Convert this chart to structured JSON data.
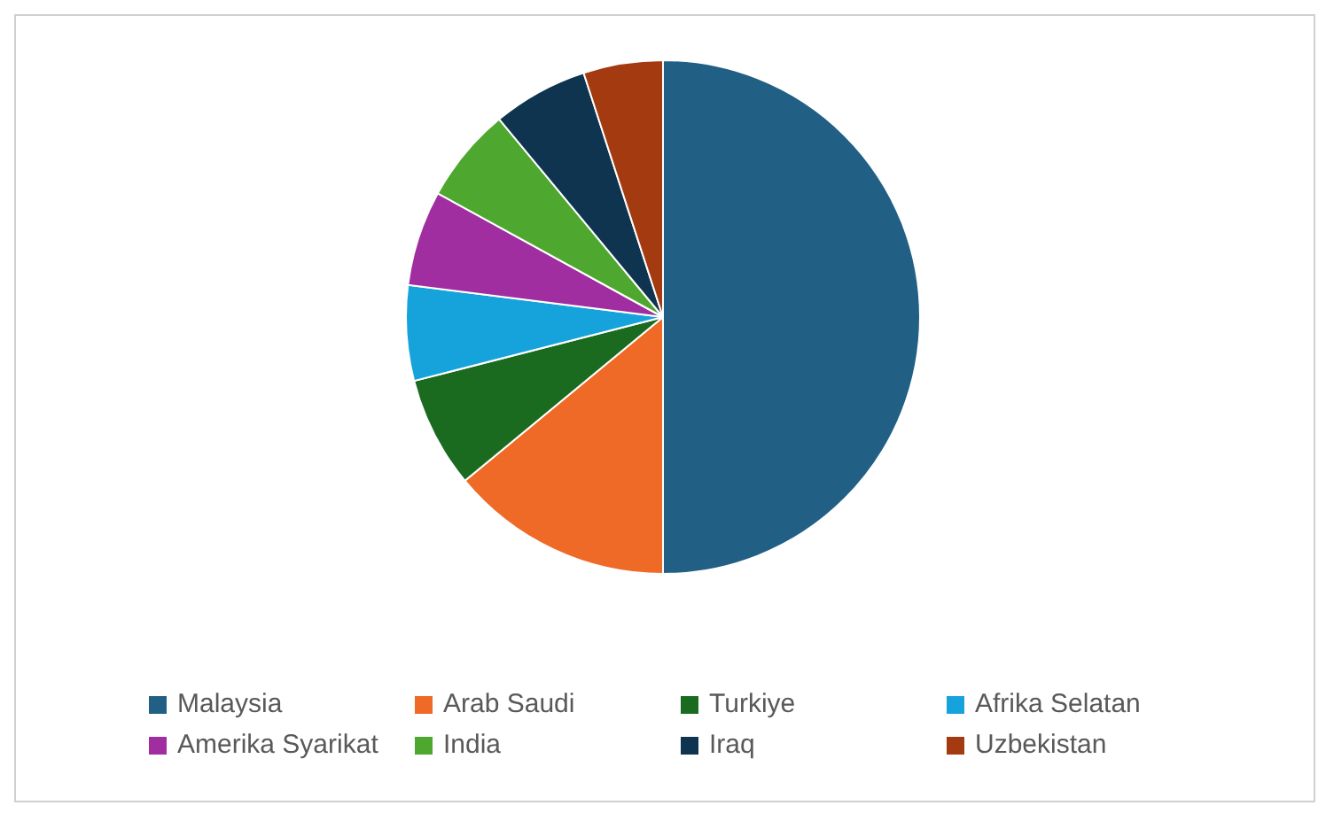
{
  "chart_data": {
    "type": "pie",
    "categories": [
      "Malaysia",
      "Arab Saudi",
      "Turkiye",
      "Afrika Selatan",
      "Amerika Syarikat",
      "India",
      "Iraq",
      "Uzbekistan"
    ],
    "values": [
      50,
      14,
      7,
      6,
      6,
      6,
      6,
      5
    ],
    "colors": [
      "#215f85",
      "#ee6a26",
      "#1a6b1f",
      "#16a3dc",
      "#a12ea0",
      "#4ea72e",
      "#0f3450",
      "#a43a10"
    ],
    "legend": "bottom"
  }
}
